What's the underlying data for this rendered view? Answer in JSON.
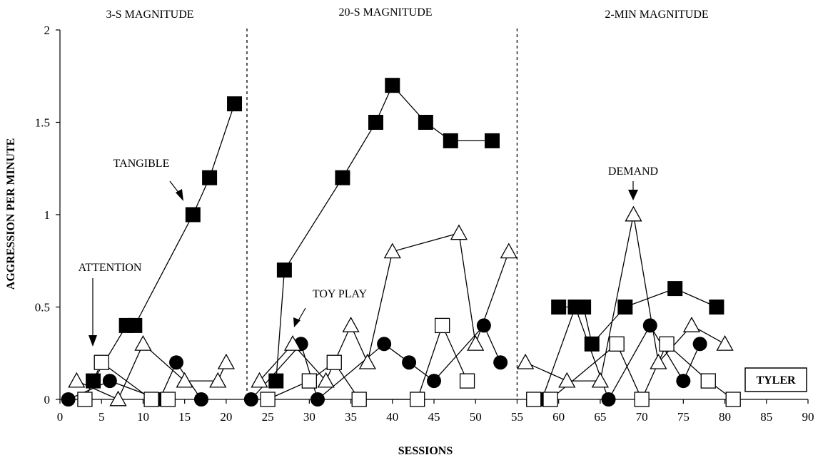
{
  "chart_data": {
    "type": "scatter",
    "xlabel": "SESSIONS",
    "ylabel": "AGGRESSION PER MINUTE",
    "xlim": [
      0,
      90
    ],
    "ylim": [
      0,
      2
    ],
    "xticks": [
      0,
      5,
      10,
      15,
      20,
      25,
      30,
      35,
      40,
      45,
      50,
      55,
      60,
      65,
      70,
      75,
      80,
      85,
      90
    ],
    "yticks": [
      0,
      0.5,
      1,
      1.5,
      2
    ],
    "ytick_labels": [
      "0",
      "0.5",
      "1",
      "1.5",
      "2"
    ],
    "phases": [
      {
        "label": "3-S MAGNITUDE",
        "start": 0,
        "end": 22.5
      },
      {
        "label": "20-S MAGNITUDE",
        "start": 22.5,
        "end": 55
      },
      {
        "label": "2-MIN MAGNITUDE",
        "start": 55,
        "end": 90
      }
    ],
    "phase_lines": [
      22.5,
      55
    ],
    "series": [
      {
        "name": "TANGIBLE",
        "marker": "filled-square",
        "segments": [
          [
            [
              4,
              0.1
            ],
            [
              8,
              0.4
            ],
            [
              9,
              0.4
            ],
            [
              16,
              1.0
            ],
            [
              18,
              1.2
            ],
            [
              21,
              1.6
            ]
          ],
          [
            [
              26,
              0.1
            ],
            [
              27,
              0.7
            ],
            [
              34,
              1.2
            ],
            [
              38,
              1.5
            ],
            [
              40,
              1.7
            ],
            [
              44,
              1.5
            ],
            [
              47,
              1.4
            ],
            [
              52,
              1.4
            ]
          ],
          [
            [
              60,
              0.5
            ],
            [
              62,
              0.5
            ],
            [
              63,
              0.5
            ],
            [
              64,
              0.3
            ],
            [
              68,
              0.5
            ],
            [
              74,
              0.6
            ],
            [
              79,
              0.5
            ]
          ]
        ]
      },
      {
        "name": "TOY PLAY",
        "marker": "filled-circle",
        "segments": [
          [
            [
              1,
              0
            ],
            [
              6,
              0.1
            ],
            [
              12,
              0
            ],
            [
              14,
              0.2
            ],
            [
              17,
              0
            ]
          ],
          [
            [
              23,
              0
            ],
            [
              29,
              0.3
            ],
            [
              31,
              0
            ],
            [
              39,
              0.3
            ],
            [
              42,
              0.2
            ],
            [
              45,
              0.1
            ],
            [
              51,
              0.4
            ],
            [
              53,
              0.2
            ]
          ],
          [
            [
              58,
              0
            ],
            [
              62,
              0.5
            ],
            [
              66,
              0
            ],
            [
              71,
              0.4
            ],
            [
              75,
              0.1
            ],
            [
              77,
              0.3
            ]
          ]
        ]
      },
      {
        "name": "DEMAND",
        "marker": "open-triangle",
        "segments": [
          [
            [
              2,
              0.1
            ],
            [
              7,
              0
            ],
            [
              10,
              0.3
            ],
            [
              15,
              0.1
            ],
            [
              19,
              0.1
            ],
            [
              20,
              0.2
            ]
          ],
          [
            [
              24,
              0.1
            ],
            [
              28,
              0.3
            ],
            [
              32,
              0.1
            ],
            [
              35,
              0.4
            ],
            [
              37,
              0.2
            ],
            [
              40,
              0.8
            ],
            [
              48,
              0.9
            ],
            [
              50,
              0.3
            ],
            [
              54,
              0.8
            ]
          ],
          [
            [
              56,
              0.2
            ],
            [
              61,
              0.1
            ],
            [
              65,
              0.1
            ],
            [
              69,
              1.0
            ],
            [
              72,
              0.2
            ],
            [
              76,
              0.4
            ],
            [
              80,
              0.3
            ]
          ]
        ]
      },
      {
        "name": "ATTENTION",
        "marker": "open-square",
        "segments": [
          [
            [
              3,
              0
            ],
            [
              5,
              0.2
            ],
            [
              11,
              0
            ],
            [
              13,
              0
            ]
          ],
          [
            [
              25,
              0
            ],
            [
              30,
              0.1
            ],
            [
              33,
              0.2
            ],
            [
              36,
              0
            ],
            [
              43,
              0
            ],
            [
              46,
              0.4
            ],
            [
              49,
              0.1
            ]
          ],
          [
            [
              57,
              0
            ],
            [
              59,
              0
            ],
            [
              67,
              0.3
            ],
            [
              70,
              0
            ],
            [
              73,
              0.3
            ],
            [
              78,
              0.1
            ],
            [
              81,
              0
            ]
          ]
        ]
      }
    ],
    "annotations": [
      {
        "text": "TANGIBLE",
        "series": "TANGIBLE"
      },
      {
        "text": "ATTENTION",
        "series": "ATTENTION"
      },
      {
        "text": "TOY PLAY",
        "series": "TOY PLAY"
      },
      {
        "text": "DEMAND",
        "series": "DEMAND"
      }
    ],
    "participant_label": "TYLER"
  }
}
